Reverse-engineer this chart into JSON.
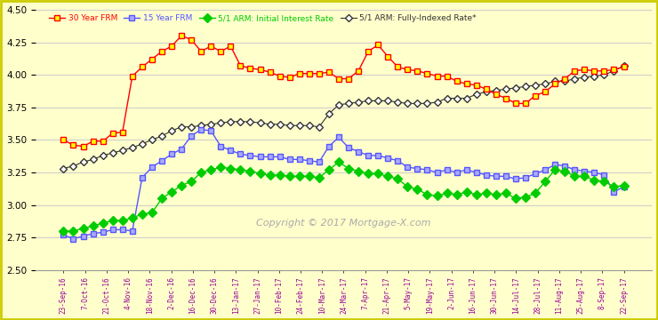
{
  "background_color": "#ffffcc",
  "border_color": "#cccc00",
  "ylim": [
    2.5,
    4.5
  ],
  "yticks": [
    2.5,
    2.75,
    3.0,
    3.25,
    3.5,
    3.75,
    4.0,
    4.25,
    4.5
  ],
  "copyright_text": "Copyright © 2017 Mortgage-X.com",
  "x_labels": [
    "23-Sep-16",
    "7-Oct-16",
    "21-Oct-16",
    "4-Nov-16",
    "18-Nov-16",
    "2-Dec-16",
    "16-Dec-16",
    "30-Dec-16",
    "13-Jan-17",
    "27-Jan-17",
    "10-Feb-17",
    "24-Feb-17",
    "10-Mar-17",
    "24-Mar-17",
    "7-Apr-17",
    "21-Apr-17",
    "5-May-17",
    "19-May-17",
    "2-Jun-17",
    "16-Jun-17",
    "30-Jun-17",
    "14-Jul-17",
    "28-Jul-17",
    "11-Aug-17",
    "25-Aug-17",
    "8-Sep-17",
    "22-Sep-17"
  ],
  "series_30yr": [
    3.5,
    3.46,
    3.45,
    3.49,
    3.49,
    3.55,
    3.56,
    3.99,
    4.06,
    4.12,
    4.18,
    4.22,
    4.3,
    4.27,
    4.18,
    4.22,
    4.18,
    4.22,
    4.07,
    4.05,
    4.04,
    4.02,
    3.99,
    3.98,
    4.01,
    4.01,
    4.01,
    4.02,
    3.97,
    3.97,
    4.03,
    4.18,
    4.23,
    4.14,
    4.06,
    4.04,
    4.03,
    4.01,
    3.99,
    3.99,
    3.95,
    3.93,
    3.92,
    3.89,
    3.85,
    3.82,
    3.78,
    3.78,
    3.84,
    3.87,
    3.93,
    3.97,
    4.03,
    4.04,
    4.03,
    4.03,
    4.04,
    4.06
  ],
  "series_15yr": [
    2.77,
    2.74,
    2.76,
    2.78,
    2.79,
    2.81,
    2.81,
    2.8,
    3.21,
    3.29,
    3.34,
    3.39,
    3.43,
    3.53,
    3.58,
    3.57,
    3.45,
    3.42,
    3.39,
    3.38,
    3.37,
    3.37,
    3.37,
    3.35,
    3.35,
    3.34,
    3.33,
    3.45,
    3.52,
    3.44,
    3.41,
    3.38,
    3.38,
    3.36,
    3.34,
    3.29,
    3.28,
    3.27,
    3.25,
    3.27,
    3.25,
    3.27,
    3.25,
    3.23,
    3.22,
    3.22,
    3.2,
    3.21,
    3.24,
    3.27,
    3.31,
    3.3,
    3.27,
    3.26,
    3.25,
    3.23,
    3.1,
    3.14
  ],
  "series_arm_initial": [
    2.8,
    2.8,
    2.82,
    2.84,
    2.86,
    2.88,
    2.88,
    2.9,
    2.93,
    2.94,
    3.05,
    3.1,
    3.15,
    3.18,
    3.25,
    3.27,
    3.29,
    3.28,
    3.27,
    3.26,
    3.24,
    3.23,
    3.23,
    3.22,
    3.22,
    3.22,
    3.21,
    3.27,
    3.33,
    3.28,
    3.26,
    3.24,
    3.24,
    3.22,
    3.2,
    3.14,
    3.12,
    3.08,
    3.07,
    3.09,
    3.08,
    3.1,
    3.08,
    3.09,
    3.08,
    3.09,
    3.05,
    3.06,
    3.09,
    3.18,
    3.27,
    3.26,
    3.22,
    3.22,
    3.19,
    3.18,
    3.14,
    3.15
  ],
  "series_arm_indexed": [
    3.28,
    3.3,
    3.33,
    3.35,
    3.38,
    3.4,
    3.42,
    3.44,
    3.47,
    3.5,
    3.53,
    3.57,
    3.6,
    3.6,
    3.61,
    3.62,
    3.63,
    3.64,
    3.64,
    3.64,
    3.63,
    3.62,
    3.62,
    3.61,
    3.61,
    3.61,
    3.6,
    3.7,
    3.77,
    3.78,
    3.79,
    3.8,
    3.8,
    3.8,
    3.79,
    3.78,
    3.78,
    3.78,
    3.79,
    3.82,
    3.82,
    3.82,
    3.85,
    3.87,
    3.88,
    3.89,
    3.9,
    3.91,
    3.92,
    3.93,
    3.95,
    3.95,
    3.97,
    3.98,
    3.99,
    4.0,
    4.03,
    4.07
  ],
  "color_30yr": "#ff0000",
  "color_15yr": "#5555ff",
  "color_arm_initial": "#00cc00",
  "color_arm_indexed": "#333333",
  "label_30yr": "30 Year FRM",
  "label_15yr": "15 Year FRM",
  "label_arm_initial": "5/1 ARM: Initial Interest Rate",
  "label_arm_indexed": "5/1 ARM: Fully-Indexed Rate*",
  "grid_color": "#cccccc"
}
